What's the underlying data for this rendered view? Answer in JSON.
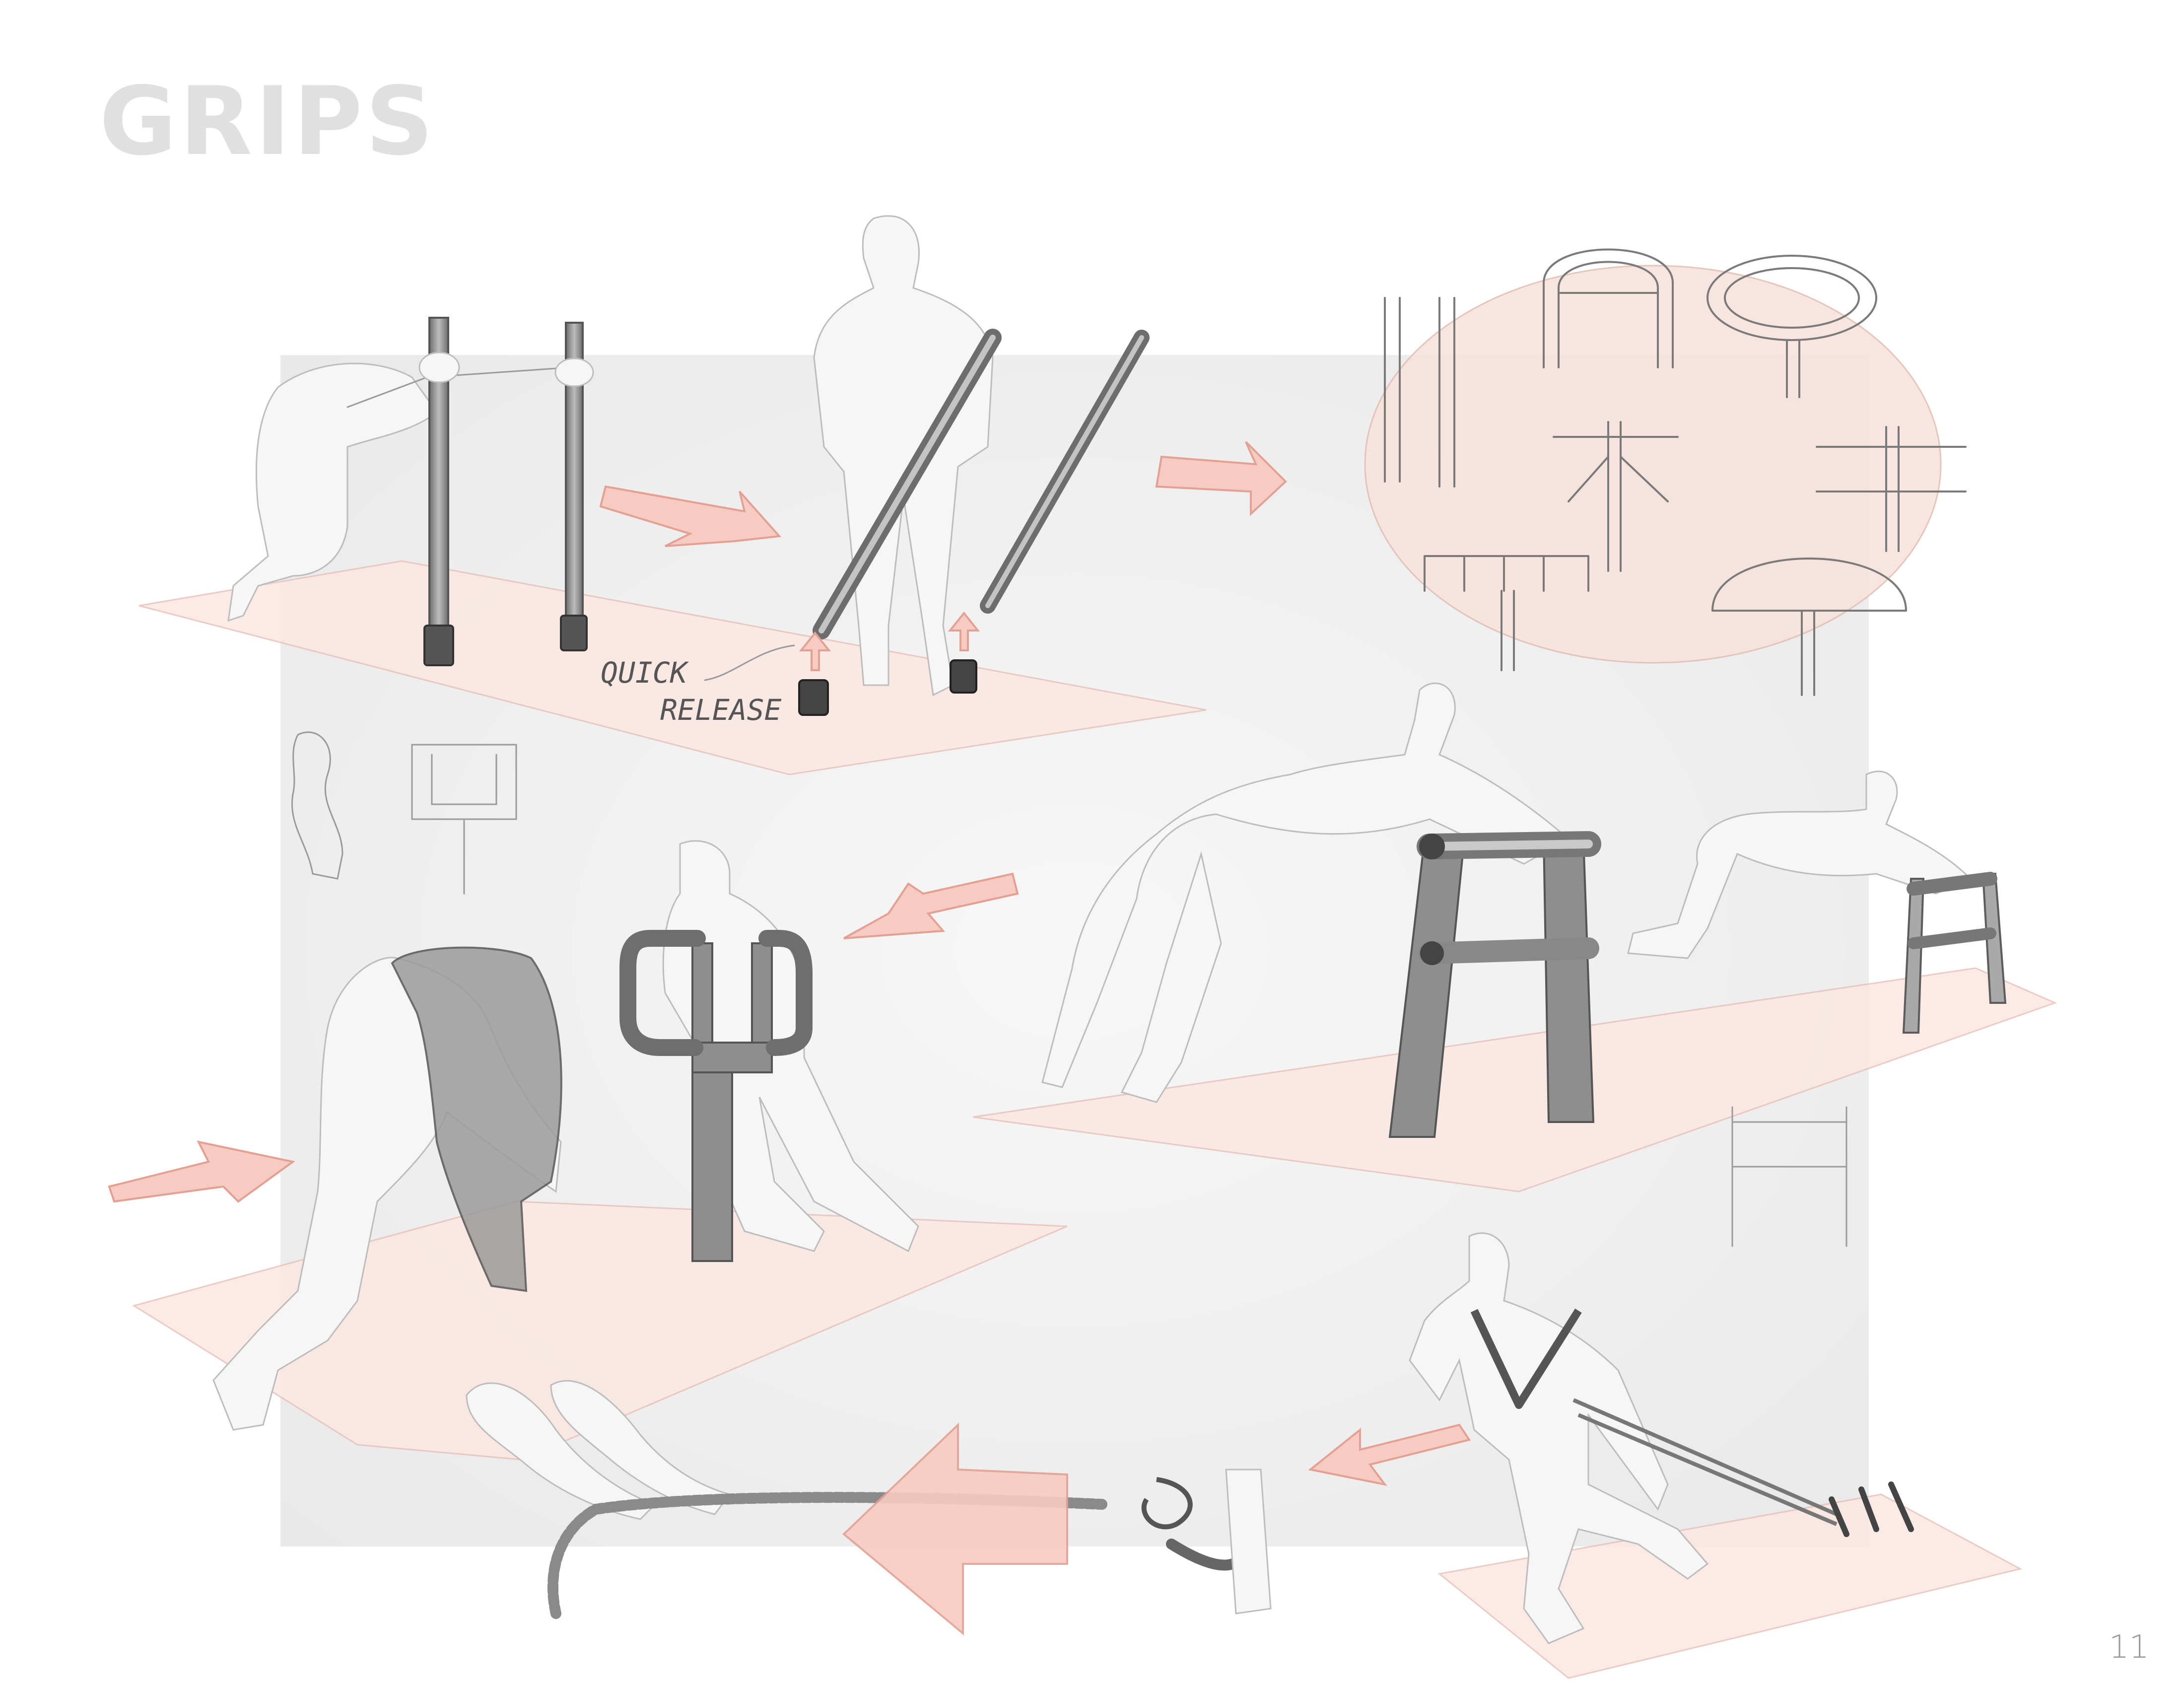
{
  "page": {
    "title": "GRIPS",
    "page_number": "11"
  },
  "annotations": {
    "quick_release_line1": "QUICK",
    "quick_release_line2": "RELEASE"
  },
  "colors": {
    "title": "#e0e0e0",
    "mat": "#fbe7e2",
    "arrow": "#f6cbc2",
    "backdrop": "#eeeeee"
  }
}
